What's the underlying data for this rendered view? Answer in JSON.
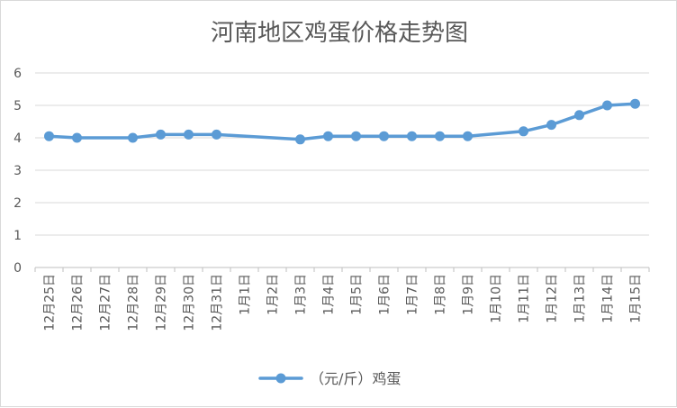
{
  "chart_data": {
    "type": "line",
    "title": "河南地区鸡蛋价格走势图",
    "xlabel": "",
    "ylabel": "",
    "ylim": [
      0,
      6
    ],
    "yticks": [
      0,
      1,
      2,
      3,
      4,
      5,
      6
    ],
    "grid": true,
    "legend_position": "bottom",
    "categories": [
      "12月25日",
      "12月26日",
      "12月27日",
      "12月28日",
      "12月29日",
      "12月30日",
      "12月31日",
      "1月1日",
      "1月2日",
      "1月3日",
      "1月4日",
      "1月5日",
      "1月6日",
      "1月7日",
      "1月8日",
      "1月9日",
      "1月10日",
      "1月11日",
      "1月12日",
      "1月13日",
      "1月14日",
      "1月15日"
    ],
    "series": [
      {
        "name": "（元/斤）鸡蛋",
        "color": "#5b9bd5",
        "values": [
          4.05,
          4.0,
          null,
          4.0,
          4.1,
          4.1,
          4.1,
          null,
          null,
          3.95,
          4.05,
          4.05,
          4.05,
          4.05,
          4.05,
          4.05,
          null,
          4.2,
          4.4,
          4.7,
          5.0,
          5.05
        ]
      }
    ]
  }
}
